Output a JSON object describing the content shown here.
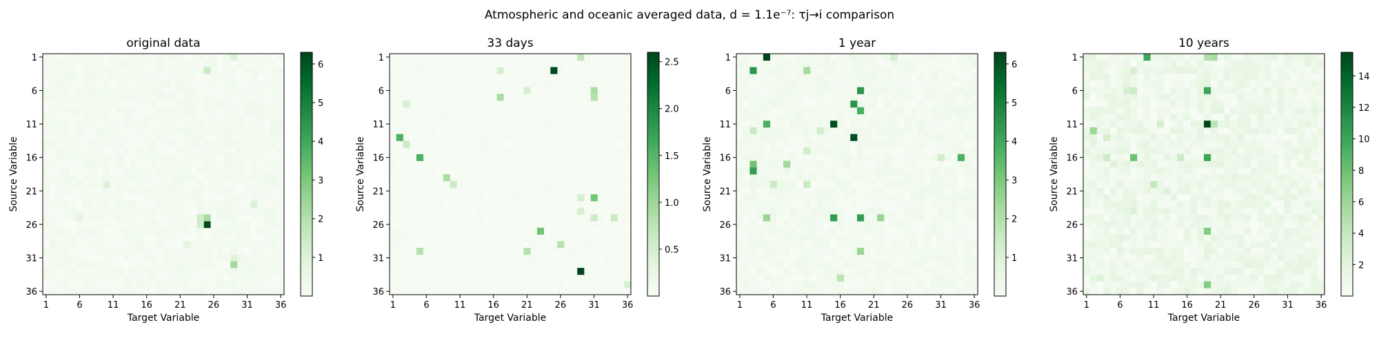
{
  "figure": {
    "title": "Atmospheric and oceanic averaged data, d = 1.1e⁻⁷: τj→i comparison"
  },
  "colormap": [
    "#f7fcf5",
    "#e5f5e0",
    "#c7e9c0",
    "#a1d99b",
    "#74c476",
    "#41ab5d",
    "#238b45",
    "#006d2c",
    "#00441b"
  ],
  "chart_data": [
    {
      "type": "heatmap",
      "title": "original data",
      "xlabel": "Target Variable",
      "ylabel": "Source Variable",
      "x_ticks": [
        "1",
        "6",
        "11",
        "16",
        "21",
        "26",
        "31",
        "36"
      ],
      "y_ticks": [
        "1",
        "6",
        "11",
        "16",
        "21",
        "26",
        "31",
        "36"
      ],
      "colorbar": {
        "min": 0,
        "max": 6.3,
        "ticks": [
          "1",
          "2",
          "3",
          "4",
          "5",
          "6"
        ],
        "tick_values": [
          1,
          2,
          3,
          4,
          5,
          6
        ]
      },
      "background_level": 0.25,
      "cells": [
        {
          "row": 26,
          "col": 25,
          "value": 6.2
        },
        {
          "row": 25,
          "col": 25,
          "value": 2.2
        },
        {
          "row": 25,
          "col": 24,
          "value": 1.4
        },
        {
          "row": 26,
          "col": 24,
          "value": 1.3
        },
        {
          "row": 3,
          "col": 25,
          "value": 1.5
        },
        {
          "row": 1,
          "col": 29,
          "value": 1.0
        },
        {
          "row": 20,
          "col": 10,
          "value": 1.0
        },
        {
          "row": 23,
          "col": 32,
          "value": 1.0
        },
        {
          "row": 25,
          "col": 6,
          "value": 0.8
        },
        {
          "row": 29,
          "col": 22,
          "value": 0.8
        },
        {
          "row": 31,
          "col": 29,
          "value": 0.9
        },
        {
          "row": 32,
          "col": 29,
          "value": 2.3
        }
      ]
    },
    {
      "type": "heatmap",
      "title": "33 days",
      "xlabel": "Target Variable",
      "ylabel": "Source Variable",
      "x_ticks": [
        "1",
        "6",
        "11",
        "16",
        "21",
        "26",
        "31",
        "36"
      ],
      "y_ticks": [
        "1",
        "6",
        "11",
        "16",
        "21",
        "26",
        "31",
        "36"
      ],
      "colorbar": {
        "min": 0,
        "max": 2.6,
        "ticks": [
          "0.5",
          "1.0",
          "1.5",
          "2.0",
          "2.5"
        ],
        "tick_values": [
          0.5,
          1.0,
          1.5,
          2.0,
          2.5
        ]
      },
      "background_level": 0.08,
      "cells": [
        {
          "row": 3,
          "col": 25,
          "value": 2.55
        },
        {
          "row": 33,
          "col": 29,
          "value": 2.6
        },
        {
          "row": 13,
          "col": 2,
          "value": 1.55
        },
        {
          "row": 14,
          "col": 3,
          "value": 0.6
        },
        {
          "row": 16,
          "col": 5,
          "value": 1.55
        },
        {
          "row": 19,
          "col": 9,
          "value": 0.9
        },
        {
          "row": 20,
          "col": 10,
          "value": 0.6
        },
        {
          "row": 22,
          "col": 31,
          "value": 1.3
        },
        {
          "row": 25,
          "col": 31,
          "value": 0.6
        },
        {
          "row": 25,
          "col": 34,
          "value": 0.6
        },
        {
          "row": 27,
          "col": 23,
          "value": 1.3
        },
        {
          "row": 29,
          "col": 26,
          "value": 0.8
        },
        {
          "row": 30,
          "col": 21,
          "value": 0.8
        },
        {
          "row": 30,
          "col": 5,
          "value": 0.8
        },
        {
          "row": 7,
          "col": 17,
          "value": 0.9
        },
        {
          "row": 6,
          "col": 31,
          "value": 0.9
        },
        {
          "row": 7,
          "col": 31,
          "value": 0.8
        },
        {
          "row": 1,
          "col": 29,
          "value": 0.7
        },
        {
          "row": 3,
          "col": 17,
          "value": 0.5
        },
        {
          "row": 8,
          "col": 3,
          "value": 0.5
        },
        {
          "row": 22,
          "col": 29,
          "value": 0.5
        },
        {
          "row": 24,
          "col": 29,
          "value": 0.5
        },
        {
          "row": 35,
          "col": 36,
          "value": 0.5
        },
        {
          "row": 6,
          "col": 21,
          "value": 0.5
        }
      ]
    },
    {
      "type": "heatmap",
      "title": "1 year",
      "xlabel": "Target Variable",
      "ylabel": "Source Variable",
      "x_ticks": [
        "1",
        "6",
        "11",
        "16",
        "21",
        "26",
        "31",
        "36"
      ],
      "y_ticks": [
        "1",
        "6",
        "11",
        "16",
        "21",
        "26",
        "31",
        "36"
      ],
      "colorbar": {
        "min": 0,
        "max": 6.3,
        "ticks": [
          "1",
          "2",
          "3",
          "4",
          "5",
          "6"
        ],
        "tick_values": [
          1,
          2,
          3,
          4,
          5,
          6
        ]
      },
      "background_level": 0.3,
      "cells": [
        {
          "row": 1,
          "col": 5,
          "value": 6.3
        },
        {
          "row": 11,
          "col": 15,
          "value": 6.1
        },
        {
          "row": 13,
          "col": 18,
          "value": 6.1
        },
        {
          "row": 3,
          "col": 3,
          "value": 4.5
        },
        {
          "row": 6,
          "col": 19,
          "value": 4.5
        },
        {
          "row": 8,
          "col": 18,
          "value": 4.5
        },
        {
          "row": 9,
          "col": 19,
          "value": 3.8
        },
        {
          "row": 11,
          "col": 5,
          "value": 3.8
        },
        {
          "row": 16,
          "col": 34,
          "value": 3.8
        },
        {
          "row": 17,
          "col": 3,
          "value": 3.2
        },
        {
          "row": 18,
          "col": 3,
          "value": 4.3
        },
        {
          "row": 25,
          "col": 15,
          "value": 4.3
        },
        {
          "row": 25,
          "col": 19,
          "value": 4.3
        },
        {
          "row": 25,
          "col": 5,
          "value": 2.5
        },
        {
          "row": 25,
          "col": 22,
          "value": 2.5
        },
        {
          "row": 30,
          "col": 19,
          "value": 2.5
        },
        {
          "row": 3,
          "col": 11,
          "value": 2.3
        },
        {
          "row": 17,
          "col": 8,
          "value": 2.3
        },
        {
          "row": 34,
          "col": 16,
          "value": 1.8
        },
        {
          "row": 12,
          "col": 3,
          "value": 1.5
        },
        {
          "row": 16,
          "col": 31,
          "value": 1.3
        },
        {
          "row": 12,
          "col": 13,
          "value": 1.3
        },
        {
          "row": 15,
          "col": 11,
          "value": 1.3
        },
        {
          "row": 20,
          "col": 6,
          "value": 1.5
        },
        {
          "row": 20,
          "col": 11,
          "value": 1.5
        },
        {
          "row": 1,
          "col": 24,
          "value": 1.2
        }
      ]
    },
    {
      "type": "heatmap",
      "title": "10 years",
      "xlabel": "Target Variable",
      "ylabel": "Source Variable",
      "x_ticks": [
        "1",
        "6",
        "11",
        "16",
        "21",
        "26",
        "31",
        "36"
      ],
      "y_ticks": [
        "1",
        "6",
        "11",
        "16",
        "21",
        "26",
        "31",
        "36"
      ],
      "colorbar": {
        "min": 0,
        "max": 15.5,
        "ticks": [
          "2",
          "4",
          "6",
          "8",
          "10",
          "12",
          "14"
        ],
        "tick_values": [
          2,
          4,
          6,
          8,
          10,
          12,
          14
        ]
      },
      "background_level": 0.6,
      "cells": [
        {
          "row": 11,
          "col": 19,
          "value": 15.3
        },
        {
          "row": 1,
          "col": 10,
          "value": 10.0
        },
        {
          "row": 6,
          "col": 19,
          "value": 10.0
        },
        {
          "row": 16,
          "col": 19,
          "value": 10.0
        },
        {
          "row": 16,
          "col": 8,
          "value": 8.0
        },
        {
          "row": 27,
          "col": 19,
          "value": 7.0
        },
        {
          "row": 35,
          "col": 19,
          "value": 7.0
        },
        {
          "row": 12,
          "col": 2,
          "value": 6.0
        },
        {
          "row": 1,
          "col": 20,
          "value": 5.5
        },
        {
          "row": 1,
          "col": 19,
          "value": 5.0
        },
        {
          "row": 11,
          "col": 20,
          "value": 4.5
        },
        {
          "row": 20,
          "col": 11,
          "value": 4.0
        },
        {
          "row": 6,
          "col": 8,
          "value": 3.5
        },
        {
          "row": 16,
          "col": 4,
          "value": 3.5
        },
        {
          "row": 16,
          "col": 15,
          "value": 3.5
        },
        {
          "row": 13,
          "col": 4,
          "value": 3.0
        },
        {
          "row": 11,
          "col": 12,
          "value": 3.0
        },
        {
          "row": 6,
          "col": 7,
          "value": 3.0
        },
        {
          "row": 3,
          "col": 8,
          "value": 2.8
        },
        {
          "row": 24,
          "col": 8,
          "value": 2.5
        },
        {
          "row": 34,
          "col": 3,
          "value": 2.5
        },
        {
          "row": 21,
          "col": 13,
          "value": 2.2
        },
        {
          "row": 17,
          "col": 5,
          "value": 2.2
        }
      ]
    }
  ]
}
